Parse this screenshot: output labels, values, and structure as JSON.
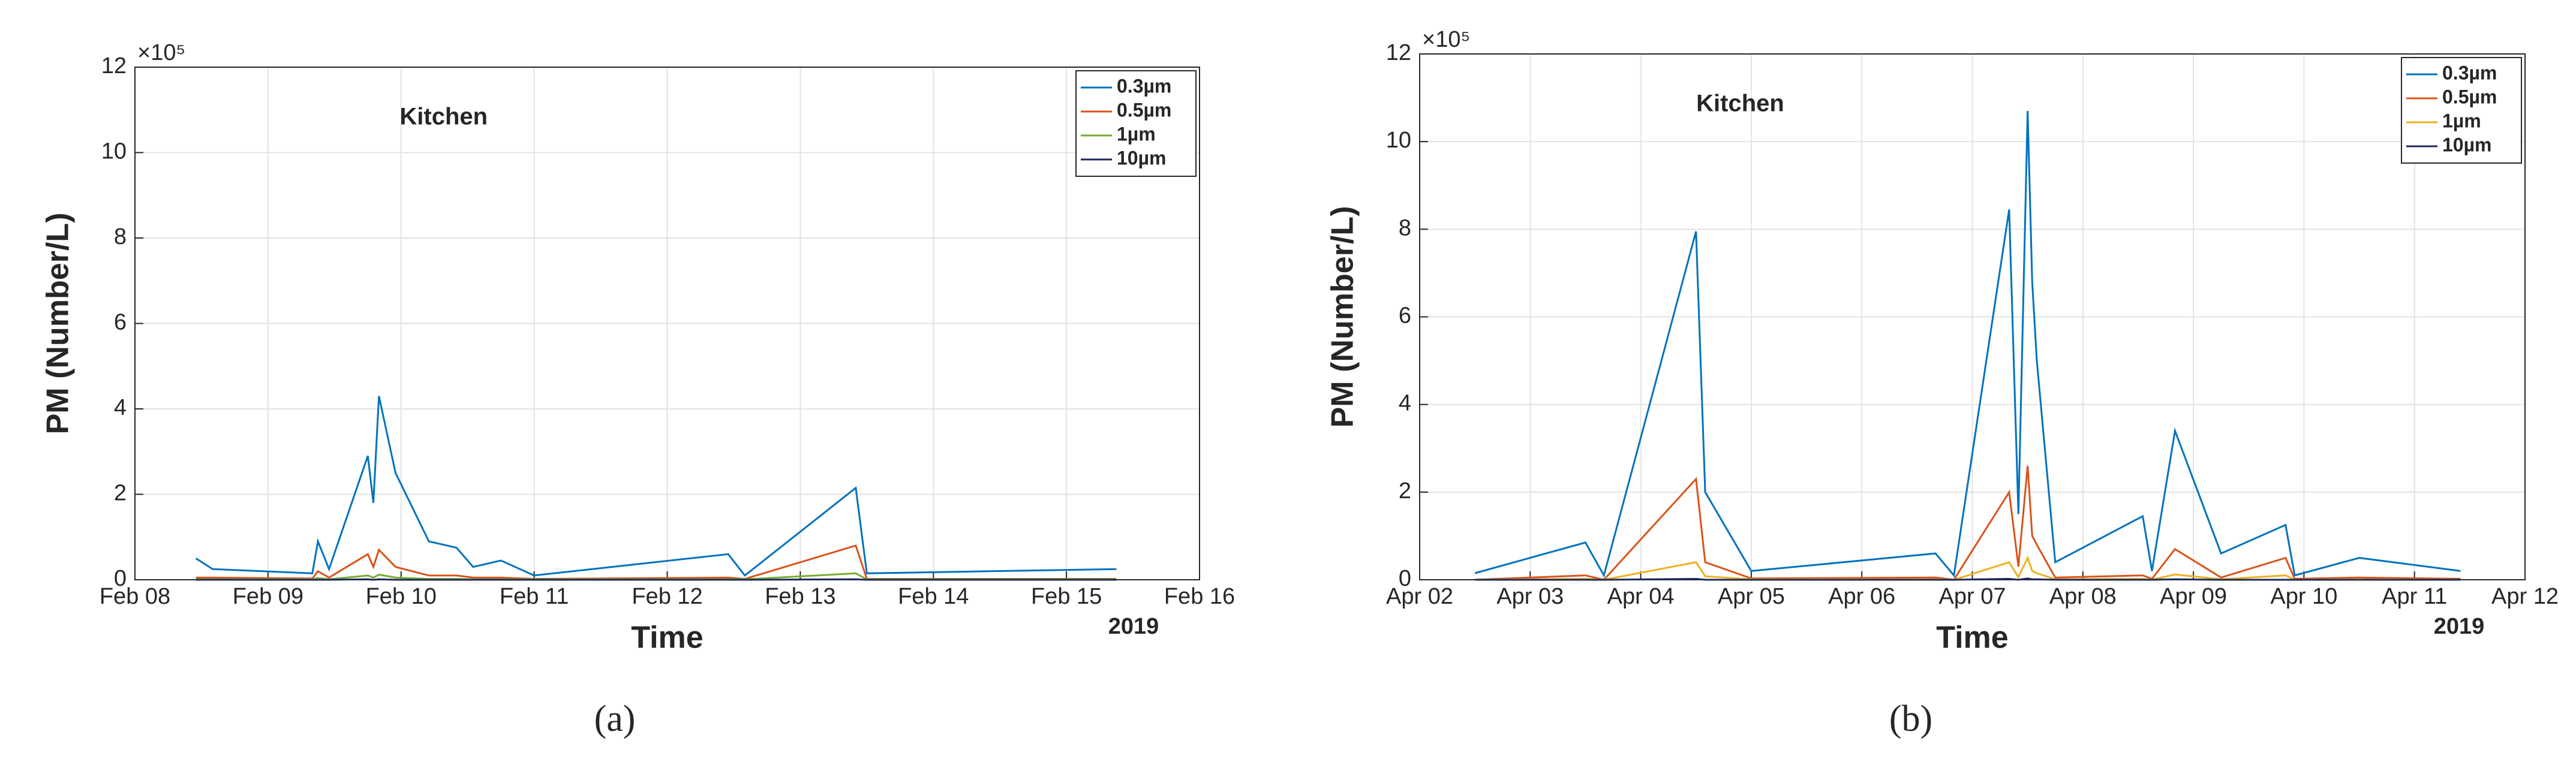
{
  "chart_data": [
    {
      "type": "line",
      "title": "Kitchen",
      "xlabel": "Time",
      "ylabel": "PM (Number/L)",
      "y_scale_label": "×10⁵",
      "year_label": "2019",
      "caption": "(a)",
      "grid": true,
      "legend": "upper right",
      "xlim": [
        "2019-02-08T00:00",
        "2019-02-16T00:00"
      ],
      "xticks": [
        {
          "value": "2019-02-08T00:00",
          "label": "Feb 08"
        },
        {
          "value": "2019-02-09T00:00",
          "label": "Feb 09"
        },
        {
          "value": "2019-02-10T00:00",
          "label": "Feb 10"
        },
        {
          "value": "2019-02-11T00:00",
          "label": "Feb 11"
        },
        {
          "value": "2019-02-12T00:00",
          "label": "Feb 12"
        },
        {
          "value": "2019-02-13T00:00",
          "label": "Feb 13"
        },
        {
          "value": "2019-02-14T00:00",
          "label": "Feb 14"
        },
        {
          "value": "2019-02-15T00:00",
          "label": "Feb 15"
        },
        {
          "value": "2019-02-16T00:00",
          "label": "Feb 16"
        }
      ],
      "ylim": [
        0,
        12
      ],
      "yticks": [
        0,
        2,
        4,
        6,
        8,
        10,
        12
      ],
      "x": [
        "2019-02-08T11:00",
        "2019-02-08T14:00",
        "2019-02-09T08:00",
        "2019-02-09T09:00",
        "2019-02-09T11:00",
        "2019-02-09T18:00",
        "2019-02-09T19:00",
        "2019-02-09T20:00",
        "2019-02-09T23:00",
        "2019-02-10T05:00",
        "2019-02-10T10:00",
        "2019-02-10T13:00",
        "2019-02-10T18:00",
        "2019-02-11T00:00",
        "2019-02-12T11:00",
        "2019-02-12T14:00",
        "2019-02-13T10:00",
        "2019-02-13T12:00",
        "2019-02-15T09:00"
      ],
      "series": [
        {
          "name": "0.3µm",
          "color": "#0072bd",
          "values": [
            0.5,
            0.25,
            0.15,
            0.9,
            0.25,
            2.9,
            1.8,
            4.3,
            2.5,
            0.9,
            0.75,
            0.3,
            0.45,
            0.1,
            0.6,
            0.1,
            2.15,
            0.15,
            0.25
          ]
        },
        {
          "name": "0.5µm",
          "color": "#d95319",
          "values": [
            0.05,
            0.05,
            0.03,
            0.2,
            0.05,
            0.6,
            0.3,
            0.7,
            0.3,
            0.1,
            0.1,
            0.05,
            0.05,
            0.02,
            0.05,
            0.02,
            0.8,
            0.02,
            0.02
          ]
        },
        {
          "name": "1µm",
          "color": "#77ac30",
          "values": [
            0.01,
            0.01,
            0.01,
            0.04,
            0.01,
            0.1,
            0.05,
            0.12,
            0.05,
            0.02,
            0.02,
            0.01,
            0.01,
            0.01,
            0.01,
            0.01,
            0.15,
            0.01,
            0.01
          ]
        },
        {
          "name": "10µm",
          "color": "#1f2a5a",
          "values": [
            0,
            0,
            0,
            0,
            0,
            0.01,
            0,
            0.01,
            0,
            0,
            0,
            0,
            0,
            0,
            0,
            0,
            0.01,
            0,
            0
          ]
        }
      ]
    },
    {
      "type": "line",
      "title": "Kitchen",
      "xlabel": "Time",
      "ylabel": "PM (Number/L)",
      "y_scale_label": "×10⁵",
      "year_label": "2019",
      "caption": "(b)",
      "grid": true,
      "legend": "upper right",
      "xlim": [
        "2019-04-02T00:00",
        "2019-04-12T00:00"
      ],
      "xticks": [
        {
          "value": "2019-04-02T00:00",
          "label": "Apr 02"
        },
        {
          "value": "2019-04-03T00:00",
          "label": "Apr 03"
        },
        {
          "value": "2019-04-04T00:00",
          "label": "Apr 04"
        },
        {
          "value": "2019-04-05T00:00",
          "label": "Apr 05"
        },
        {
          "value": "2019-04-06T00:00",
          "label": "Apr 06"
        },
        {
          "value": "2019-04-07T00:00",
          "label": "Apr 07"
        },
        {
          "value": "2019-04-08T00:00",
          "label": "Apr 08"
        },
        {
          "value": "2019-04-09T00:00",
          "label": "Apr 09"
        },
        {
          "value": "2019-04-10T00:00",
          "label": "Apr 10"
        },
        {
          "value": "2019-04-11T00:00",
          "label": "Apr 11"
        },
        {
          "value": "2019-04-12T00:00",
          "label": "Apr 12"
        }
      ],
      "ylim": [
        0,
        12
      ],
      "yticks": [
        0,
        2,
        4,
        6,
        8,
        10,
        12
      ],
      "x": [
        "2019-04-02T12:00",
        "2019-04-03T12:00",
        "2019-04-03T16:00",
        "2019-04-04T12:00",
        "2019-04-04T14:00",
        "2019-04-05T00:00",
        "2019-04-06T16:00",
        "2019-04-06T20:00",
        "2019-04-07T08:00",
        "2019-04-07T10:00",
        "2019-04-07T12:00",
        "2019-04-07T13:00",
        "2019-04-07T14:00",
        "2019-04-07T18:00",
        "2019-04-08T13:00",
        "2019-04-08T15:00",
        "2019-04-08T20:00",
        "2019-04-09T06:00",
        "2019-04-09T20:00",
        "2019-04-09T22:00",
        "2019-04-10T12:00",
        "2019-04-11T10:00"
      ],
      "series": [
        {
          "name": "0.3µm",
          "color": "#0072bd",
          "values": [
            0.15,
            0.85,
            0.1,
            7.95,
            2.0,
            0.2,
            0.6,
            0.1,
            8.45,
            1.5,
            10.7,
            6.8,
            5.0,
            0.4,
            1.45,
            0.2,
            3.4,
            0.6,
            1.25,
            0.1,
            0.5,
            0.2
          ]
        },
        {
          "name": "0.5µm",
          "color": "#d95319",
          "values": [
            0,
            0.1,
            0,
            2.3,
            0.4,
            0.03,
            0.05,
            0,
            2.0,
            0.3,
            2.6,
            1.0,
            0.8,
            0.05,
            0.1,
            0.02,
            0.7,
            0.05,
            0.5,
            0.02,
            0.05,
            0.02
          ]
        },
        {
          "name": "1µm",
          "color": "#edb120",
          "values": [
            0,
            0.02,
            0,
            0.4,
            0.08,
            0.01,
            0.01,
            0,
            0.4,
            0.06,
            0.5,
            0.2,
            0.15,
            0.01,
            0.02,
            0,
            0.12,
            0.01,
            0.1,
            0,
            0.01,
            0
          ]
        },
        {
          "name": "10µm",
          "color": "#1f2a5a",
          "values": [
            0,
            0,
            0,
            0.02,
            0,
            0,
            0,
            0,
            0.02,
            0,
            0.03,
            0.01,
            0.01,
            0,
            0,
            0,
            0.01,
            0,
            0,
            0,
            0,
            0
          ]
        }
      ]
    }
  ]
}
